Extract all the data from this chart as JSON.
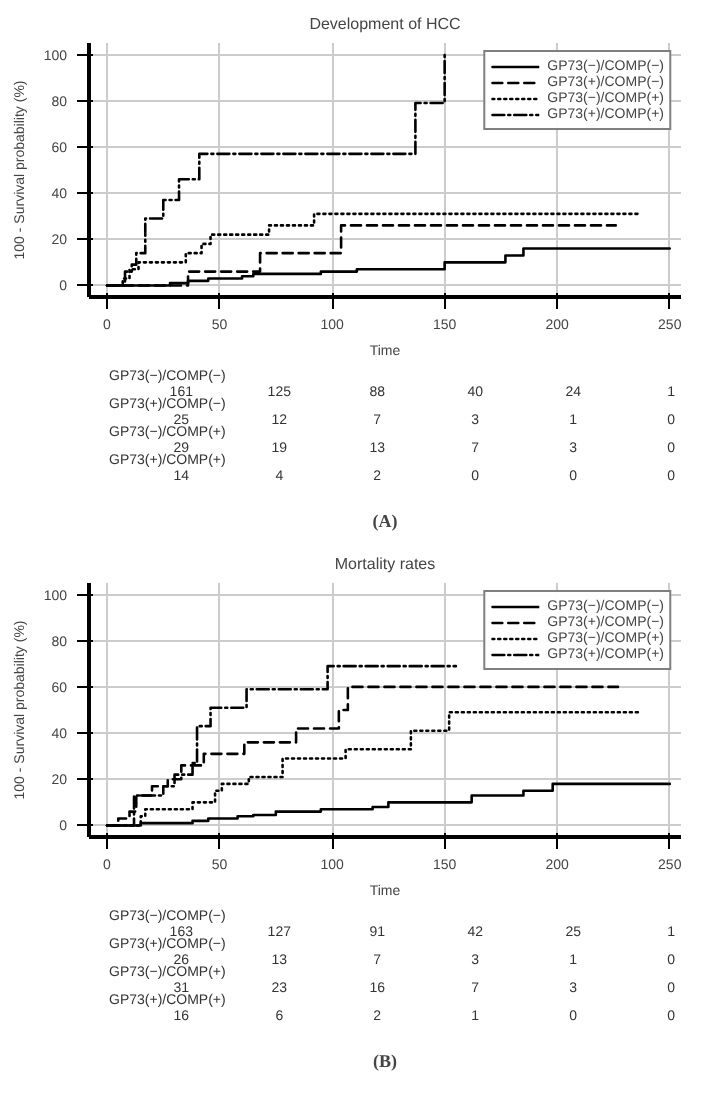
{
  "chart_data": [
    {
      "type": "step",
      "title": "Development of HCC",
      "xlabel": "Time",
      "ylabel": "100 - Survival probability (%)",
      "xlim": [
        -8,
        255
      ],
      "ylim": [
        -5,
        105
      ],
      "xticks": [
        0,
        50,
        100,
        150,
        200,
        250
      ],
      "yticks": [
        0,
        20,
        40,
        60,
        80,
        100
      ],
      "grid": true,
      "legend": "top right",
      "series": [
        {
          "name": "GP73(−)/COMP(−)",
          "color": "#000000",
          "line_style": "solid",
          "x": [
            0,
            28,
            36,
            45,
            60,
            65,
            95,
            111,
            150,
            177,
            185,
            250
          ],
          "values": [
            0,
            1,
            2,
            3,
            4,
            5,
            6,
            7,
            10,
            13,
            16,
            16
          ]
        },
        {
          "name": "GP73(+)/COMP(−)",
          "color": "#000000",
          "line_style": "dashed",
          "x": [
            0,
            36,
            68,
            104,
            226
          ],
          "values": [
            0,
            6,
            14,
            26,
            26
          ]
        },
        {
          "name": "GP73(−)/COMP(+)",
          "color": "#000000",
          "line_style": "dotted",
          "x": [
            0,
            7,
            10,
            14,
            35,
            42,
            46,
            72,
            92,
            237
          ],
          "values": [
            0,
            3,
            7,
            10,
            14,
            18,
            22,
            26,
            31,
            31
          ]
        },
        {
          "name": "GP73(+)/COMP(+)",
          "color": "#000000",
          "line_style": "dashdot",
          "x": [
            0,
            8,
            11,
            13,
            17,
            25,
            32,
            41,
            137,
            150,
            150
          ],
          "values": [
            0,
            6,
            9,
            14,
            29,
            37,
            46,
            57,
            79,
            100,
            100
          ]
        }
      ]
    },
    {
      "type": "other",
      "annotations": [
        "GP73(−)/COMP(−)",
        "161",
        "125",
        "88",
        "40",
        "24",
        "1",
        "GP73(+)/COMP(−)",
        "25",
        "12",
        "7",
        "3",
        "1",
        "0",
        "GP73(−)/COMP(+)",
        "29",
        "19",
        "13",
        "7",
        "3",
        "0",
        "GP73(+)/COMP(+)",
        "14",
        "4",
        "2",
        "0",
        "0",
        "0",
        "(A)"
      ]
    },
    {
      "type": "step",
      "title": "Mortality rates",
      "xlabel": "Time",
      "ylabel": "100 - Survival probability (%)",
      "xlim": [
        -8,
        255
      ],
      "ylim": [
        -5,
        105
      ],
      "xticks": [
        0,
        50,
        100,
        150,
        200,
        250
      ],
      "yticks": [
        0,
        20,
        40,
        60,
        80,
        100
      ],
      "grid": true,
      "legend": "top right",
      "series": [
        {
          "name": "GP73(−)/COMP(−)",
          "color": "#000000",
          "line_style": "solid",
          "x": [
            0,
            15,
            38,
            45,
            58,
            65,
            75,
            95,
            118,
            125,
            162,
            185,
            198,
            250
          ],
          "values": [
            0,
            1,
            2,
            3,
            4,
            4.5,
            6,
            7,
            8,
            10,
            13,
            15,
            18,
            18
          ]
        },
        {
          "name": "GP73(+)/COMP(−)",
          "color": "#000000",
          "line_style": "dashed",
          "x": [
            0,
            5,
            10,
            13,
            20,
            27,
            33,
            43,
            61,
            84,
            103,
            107,
            227
          ],
          "values": [
            0,
            3,
            6,
            13,
            17,
            20,
            26,
            31,
            36,
            42,
            50,
            60,
            60
          ]
        },
        {
          "name": "GP73(−)/COMP(+)",
          "color": "#000000",
          "line_style": "dotted",
          "x": [
            0,
            15,
            17,
            38,
            48,
            51,
            63,
            78,
            106,
            135,
            152,
            237
          ],
          "values": [
            0,
            4,
            7,
            10,
            15,
            18,
            21,
            29,
            33,
            41,
            49,
            49
          ]
        },
        {
          "name": "GP73(+)/COMP(+)",
          "color": "#000000",
          "line_style": "dashdot",
          "x": [
            0,
            12,
            25,
            30,
            38,
            40,
            46,
            62,
            98,
            155
          ],
          "values": [
            0,
            13,
            17,
            22,
            27,
            43,
            51,
            59,
            69,
            69
          ]
        }
      ]
    },
    {
      "type": "other",
      "annotations": [
        "GP73(−)/COMP(−)",
        "163",
        "127",
        "91",
        "42",
        "25",
        "1",
        "GP73(+)/COMP(−)",
        "26",
        "13",
        "7",
        "3",
        "1",
        "0",
        "GP73(−)/COMP(+)",
        "31",
        "23",
        "16",
        "7",
        "3",
        "0",
        "GP73(+)/COMP(+)",
        "16",
        "6",
        "2",
        "1",
        "0",
        "0",
        "(B)"
      ]
    }
  ]
}
